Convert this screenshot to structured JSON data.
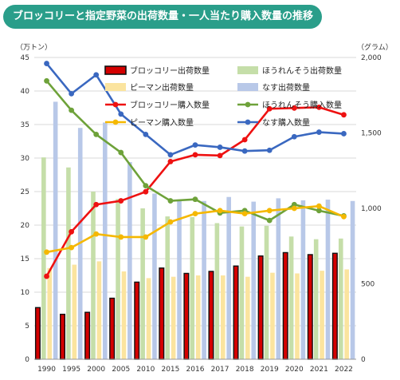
{
  "title": "ブロッコリーと指定野菜の出荷数量・一人当たり購入数量の推移",
  "left_unit": "（万トン）",
  "right_unit": "（グラム）",
  "chart_data": {
    "type": "bar",
    "categories": [
      "1990",
      "1995",
      "2000",
      "2005",
      "2010",
      "2015",
      "2016",
      "2017",
      "2018",
      "2019",
      "2020",
      "2021",
      "2022"
    ],
    "y_left": {
      "min": 0,
      "max": 45,
      "ticks": [
        0,
        5,
        10,
        15,
        20,
        25,
        30,
        35,
        40,
        45
      ]
    },
    "y_right": {
      "min": 0,
      "max": 2000,
      "ticks": [
        0,
        500,
        1000,
        1500,
        2000
      ],
      "tick_labels": [
        "0",
        "500",
        "1,000",
        "1,500",
        "2,000"
      ]
    },
    "legend_position": "top",
    "bar_series": [
      {
        "name": "ブロッコリー出荷数量",
        "color": "#d40000",
        "outline": "#111111",
        "values": [
          7.7,
          6.7,
          7.0,
          9.1,
          11.5,
          13.6,
          12.8,
          13.1,
          13.9,
          15.4,
          15.9,
          15.6,
          15.8
        ]
      },
      {
        "name": "ほうれんそう出荷数量",
        "color": "#c5dea9",
        "values": [
          30.1,
          28.6,
          25.0,
          23.9,
          22.5,
          21.3,
          21.2,
          20.3,
          19.8,
          19.9,
          18.3,
          17.9,
          18.0
        ]
      },
      {
        "name": "ピーマン出荷数量",
        "color": "#fbe49f",
        "values": [
          13.6,
          14.1,
          14.6,
          13.1,
          12.1,
          12.3,
          12.5,
          12.5,
          12.3,
          12.9,
          12.8,
          13.2,
          13.4
        ]
      },
      {
        "name": "なす出荷数量",
        "color": "#b8c8e8",
        "values": [
          38.4,
          34.5,
          35.3,
          29.4,
          24.7,
          23.6,
          23.6,
          24.2,
          23.5,
          24.0,
          23.7,
          23.8,
          23.6
        ]
      }
    ],
    "line_series": [
      {
        "name": "ブロッコリー購入数量",
        "color": "#ee1111",
        "values": [
          550,
          845,
          1025,
          1050,
          1110,
          1310,
          1355,
          1350,
          1455,
          1660,
          1665,
          1670,
          1620
        ]
      },
      {
        "name": "ほうれんそう購入数量",
        "color": "#6ea23a",
        "values": [
          1845,
          1650,
          1490,
          1370,
          1150,
          1050,
          1060,
          970,
          985,
          920,
          1025,
          985,
          950
        ]
      },
      {
        "name": "ピーマン購入数量",
        "color": "#f5b800",
        "values": [
          710,
          740,
          830,
          810,
          810,
          910,
          965,
          985,
          965,
          985,
          1000,
          1015,
          945
        ]
      },
      {
        "name": "なす購入数量",
        "color": "#3a68c0",
        "values": [
          1960,
          1760,
          1885,
          1625,
          1490,
          1355,
          1420,
          1405,
          1380,
          1385,
          1475,
          1505,
          1495
        ]
      }
    ]
  }
}
